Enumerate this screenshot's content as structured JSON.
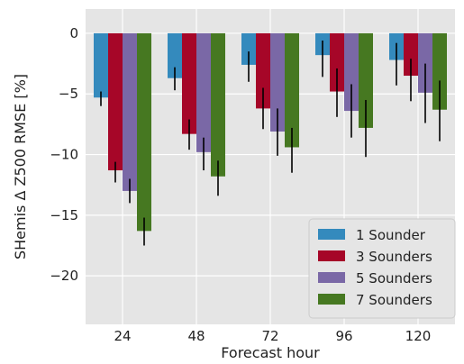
{
  "chart_data": {
    "type": "bar",
    "xlabel": "Forecast hour",
    "ylabel": "SHemis Δ Z500 RMSE [%]",
    "categories": [
      "24",
      "48",
      "72",
      "96",
      "120"
    ],
    "ylim": [
      -24,
      2
    ],
    "yticks": [
      0,
      -5,
      -10,
      -15,
      -20
    ],
    "ytick_labels": [
      "0",
      "−5",
      "−10",
      "−15",
      "−20"
    ],
    "grid": true,
    "legend_position": "lower-right",
    "series": [
      {
        "name": "1 Sounder",
        "color": "#348ABD",
        "values": [
          -5.3,
          -3.7,
          -2.6,
          -1.8,
          -2.2
        ],
        "error_low": [
          -6.0,
          -4.7,
          -4.0,
          -3.6,
          -4.3
        ],
        "error_high": [
          -4.8,
          -2.8,
          -1.5,
          -0.6,
          -0.8
        ]
      },
      {
        "name": "3 Sounders",
        "color": "#A60628",
        "values": [
          -11.3,
          -8.3,
          -6.2,
          -4.8,
          -3.5
        ],
        "error_low": [
          -12.3,
          -9.6,
          -7.9,
          -6.9,
          -5.6
        ],
        "error_high": [
          -10.6,
          -7.1,
          -4.5,
          -2.9,
          -2.1
        ]
      },
      {
        "name": "5 Sounders",
        "color": "#7A68A6",
        "values": [
          -13.0,
          -9.8,
          -8.1,
          -6.4,
          -4.9
        ],
        "error_low": [
          -14.0,
          -11.3,
          -10.1,
          -8.6,
          -7.4
        ],
        "error_high": [
          -12.0,
          -8.6,
          -6.2,
          -4.2,
          -2.5
        ]
      },
      {
        "name": "7 Sounders",
        "color": "#467821",
        "values": [
          -16.3,
          -11.8,
          -9.4,
          -7.8,
          -6.3
        ],
        "error_low": [
          -17.5,
          -13.4,
          -11.5,
          -10.2,
          -8.9
        ],
        "error_high": [
          -15.2,
          -10.5,
          -7.8,
          -5.5,
          -3.9
        ]
      }
    ]
  }
}
